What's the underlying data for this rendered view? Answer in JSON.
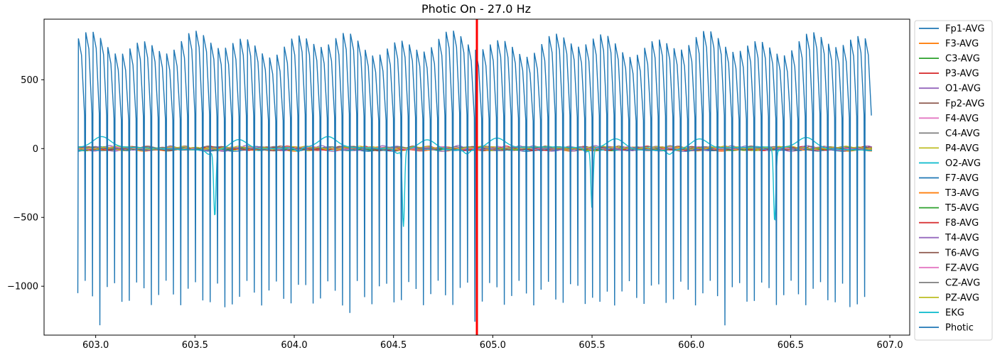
{
  "chart_data": {
    "type": "line",
    "title": "Photic On - 27.0 Hz",
    "xlabel": "",
    "ylabel": "",
    "xlim": [
      602.74,
      607.1
    ],
    "ylim": [
      -1355,
      940
    ],
    "x_start": 602.91,
    "x_end": 606.91,
    "xticks": [
      603.0,
      603.5,
      604.0,
      604.5,
      605.0,
      605.5,
      606.0,
      606.5,
      607.0
    ],
    "xtick_labels": [
      "603.0",
      "603.5",
      "604.0",
      "604.5",
      "605.0",
      "605.5",
      "606.0",
      "606.5",
      "607.0"
    ],
    "yticks": [
      500,
      0,
      -500,
      -1000
    ],
    "ytick_labels": [
      "500",
      "0",
      "−500",
      "−1000"
    ],
    "grid": false,
    "legend_position": "right, outside plot",
    "marker_line": {
      "x": 604.92,
      "color": "#ff0000"
    },
    "photic_frequency_hz": 27.0,
    "ekg_beats_x": [
      602.91,
      603.6,
      604.05,
      604.55,
      604.9,
      605.5,
      605.92,
      606.46
    ],
    "series": [
      {
        "name": "Fp1-AVG",
        "color": "#1f77b4",
        "amplitude": 8
      },
      {
        "name": "F3-AVG",
        "color": "#ff7f0e",
        "amplitude": 8
      },
      {
        "name": "C3-AVG",
        "color": "#2ca02c",
        "amplitude": 6
      },
      {
        "name": "P3-AVG",
        "color": "#d62728",
        "amplitude": 6
      },
      {
        "name": "O1-AVG",
        "color": "#9467bd",
        "amplitude": 10
      },
      {
        "name": "Fp2-AVG",
        "color": "#8c564b",
        "amplitude": 8
      },
      {
        "name": "F4-AVG",
        "color": "#e377c2",
        "amplitude": 7
      },
      {
        "name": "C4-AVG",
        "color": "#7f7f7f",
        "amplitude": 6
      },
      {
        "name": "P4-AVG",
        "color": "#bcbd22",
        "amplitude": 9
      },
      {
        "name": "O2-AVG",
        "color": "#17becf",
        "amplitude": 9
      },
      {
        "name": "F7-AVG",
        "color": "#1f77b4",
        "amplitude": 10
      },
      {
        "name": "T3-AVG",
        "color": "#ff7f0e",
        "amplitude": 8
      },
      {
        "name": "T5-AVG",
        "color": "#2ca02c",
        "amplitude": 8
      },
      {
        "name": "F8-AVG",
        "color": "#d62728",
        "amplitude": 10
      },
      {
        "name": "T4-AVG",
        "color": "#9467bd",
        "amplitude": 12
      },
      {
        "name": "T6-AVG",
        "color": "#8c564b",
        "amplitude": 9
      },
      {
        "name": "FZ-AVG",
        "color": "#e377c2",
        "amplitude": 6
      },
      {
        "name": "CZ-AVG",
        "color": "#7f7f7f",
        "amplitude": 6
      },
      {
        "name": "PZ-AVG",
        "color": "#bcbd22",
        "amplitude": 7
      },
      {
        "name": "EKG",
        "color": "#17becf",
        "amplitude": 130
      },
      {
        "name": "Photic",
        "color": "#1f77b4",
        "high": 760,
        "low": -1050
      }
    ]
  }
}
